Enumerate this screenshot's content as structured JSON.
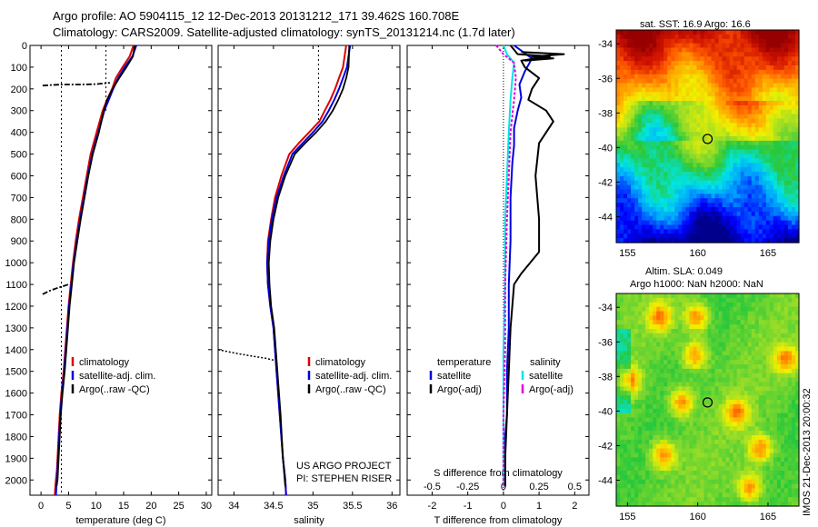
{
  "header": {
    "title_line1": "Argo profile: AO 5904115_12 12-Dec-2013 20131212_171 39.462S 160.708E",
    "title_line2": "Climatology: CARS2009. Satellite-adjusted climatology: synTS_20131214.nc (1.7d later)"
  },
  "colors": {
    "climatology": "#dd0000",
    "satellite": "#0000dd",
    "argo": "#000000",
    "salinity_satellite": "#00e5e5",
    "salinity_argo": "#dd00dd"
  },
  "chart_data": [
    {
      "type": "line",
      "id": "temperature",
      "xlabel": "temperature (deg C)",
      "xlim": [
        -2,
        31
      ],
      "ylim": [
        2070,
        0
      ],
      "xticks": [
        0,
        5,
        10,
        15,
        20,
        25,
        30
      ],
      "yticks": [
        0,
        100,
        200,
        300,
        400,
        500,
        600,
        700,
        800,
        900,
        1000,
        1100,
        1200,
        1300,
        1400,
        1500,
        1600,
        1700,
        1800,
        1900,
        2000
      ],
      "legend": [
        "climatology",
        "satellite-adj. clim.",
        "Argo(..raw -QC)"
      ],
      "legend_placement": "lower-right",
      "series": [
        {
          "name": "climatology",
          "x": [
            16.8,
            16.1,
            14.8,
            13.6,
            12.9,
            12.0,
            11.2,
            10.1,
            9.0,
            8.3,
            7.6,
            6.9,
            6.3,
            5.8,
            5.4,
            5.0,
            4.7,
            4.4,
            4.1,
            3.9,
            3.7,
            3.4,
            3.2,
            3.0,
            2.9,
            2.7,
            2.6,
            2.5
          ],
          "y": [
            0,
            50,
            100,
            150,
            200,
            250,
            300,
            400,
            500,
            600,
            700,
            800,
            900,
            1000,
            1100,
            1200,
            1300,
            1400,
            1500,
            1550,
            1600,
            1700,
            1800,
            1900,
            1950,
            2000,
            2030,
            2070
          ]
        },
        {
          "name": "satellite-adj. clim.",
          "x": [
            17.3,
            16.6,
            15.2,
            14.0,
            13.1,
            12.3,
            11.5,
            10.4,
            9.3,
            8.5,
            7.8,
            7.1,
            6.5,
            5.9,
            5.5,
            5.1,
            4.8,
            4.5,
            4.2,
            4.0,
            3.8,
            3.5,
            3.3,
            3.1,
            2.9,
            2.8,
            2.7
          ],
          "y": [
            0,
            50,
            100,
            150,
            200,
            250,
            300,
            400,
            500,
            600,
            700,
            800,
            900,
            1000,
            1100,
            1200,
            1300,
            1400,
            1500,
            1550,
            1600,
            1700,
            1800,
            1900,
            2000,
            2030,
            2070
          ]
        },
        {
          "name": "Argo",
          "x": [
            17.0,
            16.7,
            15.5,
            14.2,
            13.0,
            12.0,
            11.4,
            10.5,
            9.4,
            8.6,
            7.9,
            7.2,
            6.6,
            6.0,
            5.6,
            5.2,
            4.9,
            4.6,
            4.3,
            4.1,
            3.9,
            3.6,
            3.4,
            3.2,
            3.0,
            2.8
          ],
          "y": [
            0,
            50,
            100,
            150,
            200,
            250,
            300,
            400,
            500,
            600,
            700,
            800,
            900,
            1000,
            1100,
            1200,
            1300,
            1400,
            1500,
            1550,
            1600,
            1700,
            1800,
            1900,
            2000,
            2030
          ]
        }
      ],
      "qc_rejected": [
        {
          "x": [
            0.3,
            2.0,
            4.0,
            7.0,
            10.0,
            12.5
          ],
          "y": [
            185,
            182,
            180,
            180,
            178,
            172
          ]
        },
        {
          "x": [
            0.3,
            1.5,
            2.8,
            4.0,
            5.0
          ],
          "y": [
            1145,
            1130,
            1118,
            1108,
            1100
          ]
        }
      ],
      "reference_lines": [
        {
          "x": [
            3.7,
            3.7
          ],
          "y": [
            0,
            2070
          ]
        },
        {
          "x": [
            11.8,
            11.8
          ],
          "y": [
            0,
            300
          ]
        }
      ]
    },
    {
      "type": "line",
      "id": "salinity",
      "xlabel": "salinity",
      "xlim": [
        33.8,
        36.1
      ],
      "ylim": [
        2070,
        0
      ],
      "xticks": [
        34,
        34.5,
        35,
        35.5,
        36
      ],
      "xtick_labels": [
        "34",
        "34.5",
        "35",
        "35.5",
        "36"
      ],
      "legend": [
        "climatology",
        "satellite-adj. clim.",
        "Argo(..raw -QC)"
      ],
      "legend_placement": "lower-right",
      "annotation": [
        "US ARGO PROJECT",
        "PI: STEPHEN RISER"
      ],
      "series": [
        {
          "name": "climatology",
          "x": [
            35.42,
            35.38,
            35.33,
            35.28,
            35.22,
            35.15,
            35.08,
            34.95,
            34.82,
            34.7,
            34.6,
            34.52,
            34.47,
            34.43,
            34.42,
            34.43,
            34.46,
            34.5,
            34.54,
            34.58,
            34.62,
            34.65,
            34.66
          ],
          "y": [
            0,
            100,
            150,
            200,
            250,
            300,
            350,
            400,
            450,
            500,
            600,
            700,
            800,
            900,
            1000,
            1100,
            1200,
            1300,
            1500,
            1700,
            1900,
            2000,
            2070
          ]
        },
        {
          "name": "satellite-adj. clim.",
          "x": [
            35.47,
            35.43,
            35.38,
            35.33,
            35.27,
            35.2,
            35.12,
            35.0,
            34.87,
            34.74,
            34.63,
            34.54,
            34.48,
            34.44,
            34.42,
            34.43,
            34.46,
            34.5,
            34.54,
            34.58,
            34.62,
            34.65,
            34.66
          ],
          "y": [
            0,
            100,
            150,
            200,
            250,
            300,
            350,
            400,
            450,
            500,
            600,
            700,
            800,
            900,
            1000,
            1100,
            1200,
            1300,
            1500,
            1700,
            1900,
            2000,
            2070
          ]
        },
        {
          "name": "Argo",
          "x": [
            35.46,
            35.45,
            35.42,
            35.38,
            35.32,
            35.25,
            35.16,
            35.04,
            34.9,
            34.77,
            34.65,
            34.56,
            34.5,
            34.46,
            34.44,
            34.45,
            34.47,
            34.51,
            34.55,
            34.59,
            34.62,
            34.65
          ],
          "y": [
            0,
            100,
            150,
            200,
            250,
            300,
            350,
            400,
            450,
            500,
            600,
            700,
            800,
            900,
            1000,
            1100,
            1200,
            1300,
            1500,
            1700,
            1900,
            2030
          ]
        }
      ],
      "qc_rejected": [
        {
          "x": [
            33.8,
            34.0,
            34.2,
            34.4,
            34.52
          ],
          "y": [
            1400,
            1415,
            1428,
            1440,
            1450
          ]
        }
      ],
      "reference_lines": [
        {
          "x": [
            35.07,
            35.07
          ],
          "y": [
            0,
            350
          ]
        }
      ]
    },
    {
      "type": "line",
      "id": "difference",
      "xlabel": "T difference from climatology",
      "xlabel_top": "S difference from climatology",
      "xlim": [
        -2.7,
        2.4
      ],
      "ylim": [
        2070,
        0
      ],
      "xticks": [
        -2,
        -1,
        0,
        1,
        2
      ],
      "xtick_labels": [
        "-2",
        "-1",
        "0",
        "1",
        "2"
      ],
      "sticks": [
        -2,
        -1,
        0,
        1,
        2
      ],
      "stick_labels": [
        "-0.5",
        "-0.25",
        "0",
        "0.25",
        "0.5"
      ],
      "legend_temperature": [
        "temperature",
        "satellite",
        "Argo(-adj)"
      ],
      "legend_salinity": [
        "salinity",
        "satellite",
        "Argo(-adj)"
      ],
      "legend_placement": "lower-center",
      "series": [
        {
          "name": "T satellite",
          "x": [
            0.3,
            0.8,
            0.6,
            0.45,
            0.5,
            0.4,
            0.3,
            0.3,
            0.25,
            0.2,
            0.2,
            0.15,
            0.15,
            0.1,
            0.1,
            0.1,
            0.05,
            0.05,
            0.05
          ],
          "y": [
            0,
            60,
            120,
            180,
            240,
            300,
            380,
            460,
            540,
            700,
            900,
            1100,
            1300,
            1500,
            1600,
            1700,
            1800,
            1900,
            2030
          ]
        },
        {
          "name": "T Argo",
          "x": [
            0.2,
            0.4,
            1.3,
            0.5,
            0.6,
            1.0,
            0.8,
            0.7,
            1.2,
            1.4,
            1.0,
            0.9,
            1.0,
            1.0,
            0.5,
            0.3,
            0.2,
            0.15,
            0.1,
            0.05,
            0.05
          ],
          "y": [
            0,
            40,
            50,
            70,
            100,
            150,
            200,
            250,
            300,
            350,
            450,
            600,
            800,
            950,
            1050,
            1100,
            1300,
            1500,
            1700,
            1900,
            2030
          ]
        },
        {
          "name": "S satellite",
          "x": [
            0.0,
            0.1,
            0.3,
            0.25,
            0.2,
            0.15,
            0.1,
            0.05,
            0.05,
            0.0,
            0.0,
            0.0
          ],
          "y": [
            0,
            40,
            80,
            150,
            250,
            400,
            600,
            800,
            1100,
            1400,
            1700,
            2030
          ]
        },
        {
          "name": "S Argo",
          "x": [
            -0.2,
            0.0,
            0.3,
            0.35,
            0.3,
            0.2,
            0.15,
            0.1,
            0.05,
            0.05,
            0.0,
            0.0
          ],
          "y": [
            0,
            40,
            80,
            150,
            250,
            400,
            600,
            800,
            1100,
            1400,
            1700,
            2030
          ]
        }
      ],
      "spike": {
        "x": [
          0.5,
          1.7,
          0.8,
          1.4,
          0.6
        ],
        "y": [
          30,
          40,
          52,
          60,
          70
        ]
      },
      "reference_lines": [
        {
          "x": [
            0,
            0
          ],
          "y": [
            0,
            2070
          ]
        }
      ]
    },
    {
      "type": "heatmap",
      "id": "sst_map",
      "title": "sat. SST: 16.9  Argo: 16.6",
      "xlim": [
        154.2,
        167.2
      ],
      "ylim": [
        -45.5,
        -33.2
      ],
      "xticks": [
        155,
        160,
        165
      ],
      "yticks": [
        -34,
        -36,
        -38,
        -40,
        -42,
        -44
      ],
      "marker": {
        "x": 160.7,
        "y": -39.5
      }
    },
    {
      "type": "heatmap",
      "id": "sla_map",
      "title_line1": "Altim. SLA: 0.049",
      "title_line2": "Argo h1000: NaN  h2000: NaN",
      "xlim": [
        154.2,
        167.2
      ],
      "ylim": [
        -45.5,
        -33.2
      ],
      "xticks": [
        155,
        160,
        165
      ],
      "yticks": [
        -34,
        -36,
        -38,
        -40,
        -42,
        -44
      ],
      "marker": {
        "x": 160.7,
        "y": -39.5
      }
    }
  ],
  "footer": {
    "credit": "IMOS 21-Dec-2013 20:00:32"
  }
}
